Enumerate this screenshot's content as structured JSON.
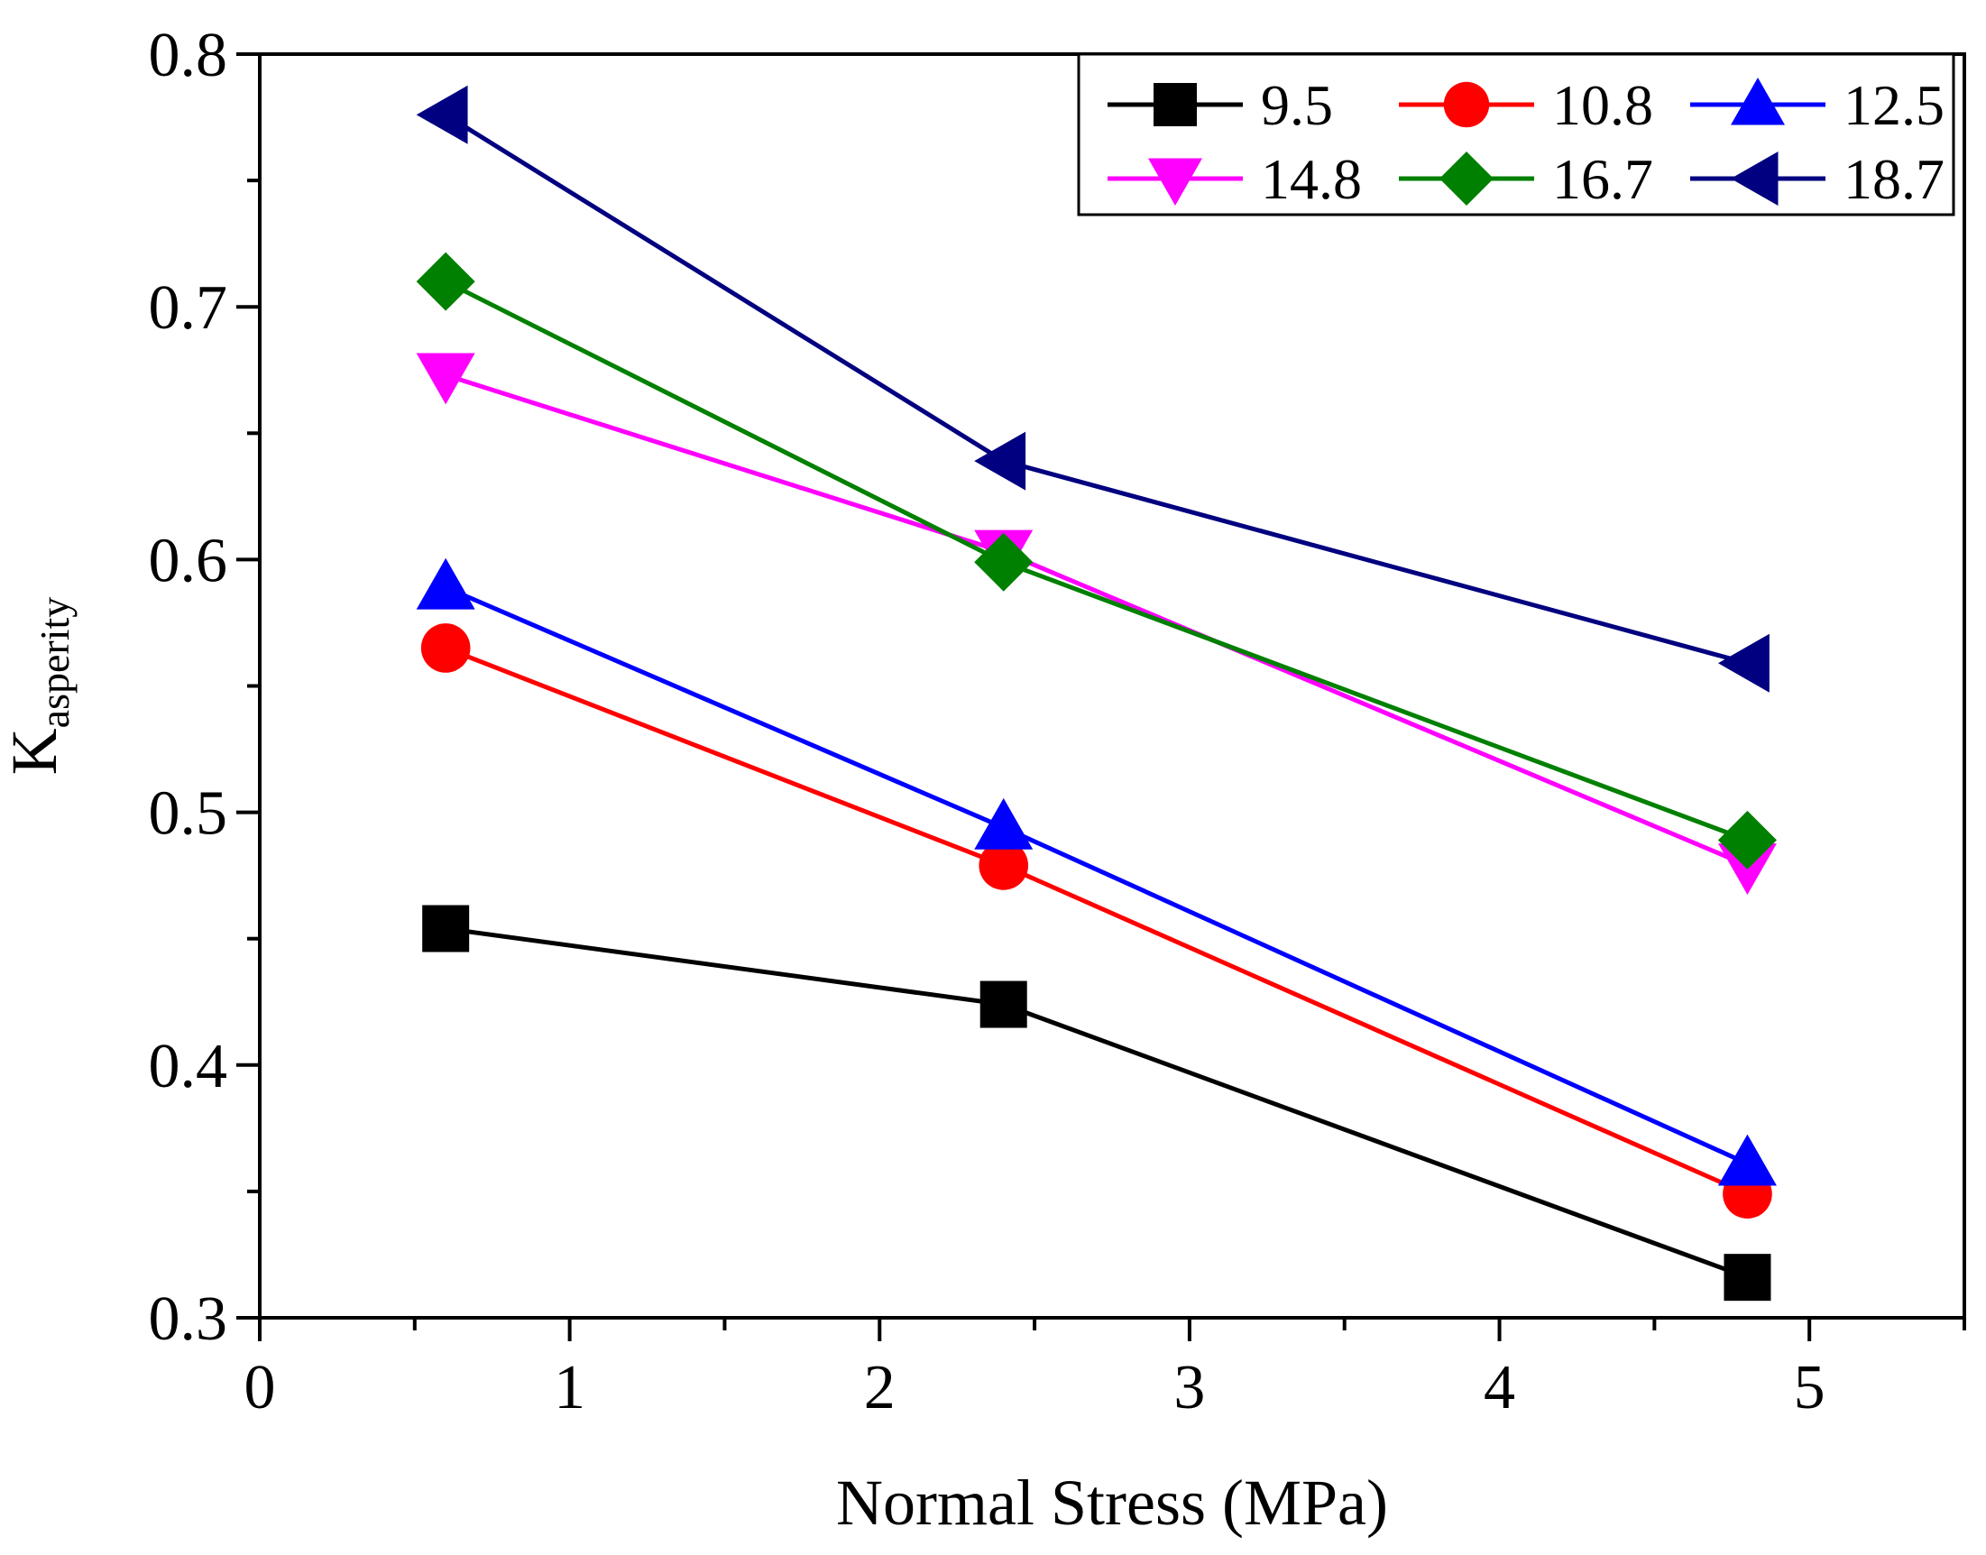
{
  "chart_data": {
    "type": "line",
    "xlabel": "Normal Stress (MPa)",
    "ylabel_main": "K",
    "ylabel_sub": "asperity",
    "xlim": [
      0,
      5.5
    ],
    "ylim": [
      0.3,
      0.8
    ],
    "x_ticks": [
      0,
      1,
      2,
      3,
      4,
      5
    ],
    "x_tick_labels": [
      "0",
      "1",
      "2",
      "3",
      "4",
      "5"
    ],
    "x_minor_ticks": [
      0.5,
      1.5,
      2.5,
      3.5,
      4.5,
      5.5
    ],
    "y_ticks": [
      0.3,
      0.4,
      0.5,
      0.6,
      0.7,
      0.8
    ],
    "y_tick_labels": [
      "0.3",
      "0.4",
      "0.5",
      "0.6",
      "0.7",
      "0.8"
    ],
    "y_minor_ticks": [
      0.35,
      0.45,
      0.55,
      0.65,
      0.75
    ],
    "grid": false,
    "legend_position": "top-right",
    "x": [
      0.6,
      2.4,
      4.8
    ],
    "series": [
      {
        "name": "9.5",
        "values": [
          0.454,
          0.424,
          0.316
        ],
        "color": "#000000",
        "marker": "square"
      },
      {
        "name": "10.8",
        "values": [
          0.565,
          0.479,
          0.349
        ],
        "color": "#ff0000",
        "marker": "circle"
      },
      {
        "name": "12.5",
        "values": [
          0.589,
          0.494,
          0.361
        ],
        "color": "#0000ff",
        "marker": "triangle-up"
      },
      {
        "name": "14.8",
        "values": [
          0.673,
          0.603,
          0.479
        ],
        "color": "#ff00ff",
        "marker": "triangle-down"
      },
      {
        "name": "16.7",
        "values": [
          0.71,
          0.599,
          0.489
        ],
        "color": "#008000",
        "marker": "diamond"
      },
      {
        "name": "18.7",
        "values": [
          0.776,
          0.639,
          0.559
        ],
        "color": "#000080",
        "marker": "triangle-left"
      }
    ]
  }
}
